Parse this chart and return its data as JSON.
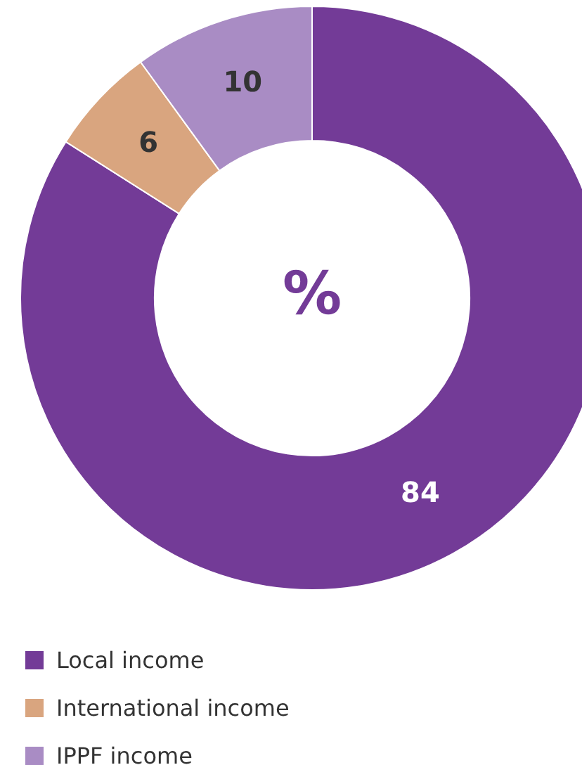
{
  "chart_data": {
    "type": "donut",
    "categories": [
      "Local income",
      "International income",
      "IPPF income"
    ],
    "values": [
      84,
      6,
      10
    ],
    "colors": [
      "#733b97",
      "#d9a57f",
      "#a98cc4"
    ],
    "data_labels": true,
    "annotations": [
      "%"
    ],
    "legend": "bottom left"
  }
}
